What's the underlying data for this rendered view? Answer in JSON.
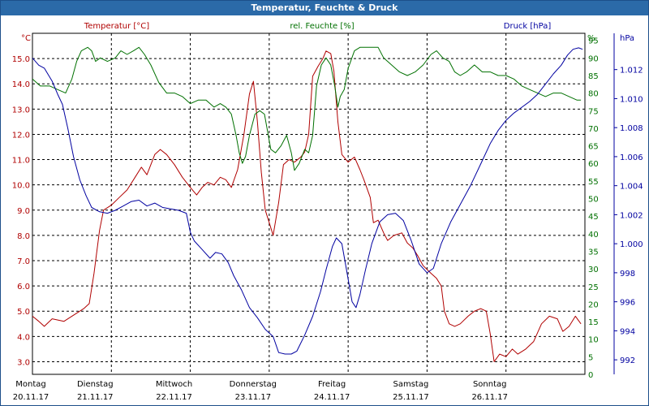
{
  "window": {
    "title": "Temperatur, Feuchte & Druck"
  },
  "chart_data": {
    "type": "line",
    "title": "Temperatur, Feuchte & Druck",
    "grid": true,
    "x_range": [
      0,
      7
    ],
    "days": [
      {
        "name": "Montag",
        "date": "20.11.17"
      },
      {
        "name": "Dienstag",
        "date": "21.11.17"
      },
      {
        "name": "Mittwoch",
        "date": "22.11.17"
      },
      {
        "name": "Donnerstag",
        "date": "23.11.17"
      },
      {
        "name": "Freitag",
        "date": "24.11.17"
      },
      {
        "name": "Samstag",
        "date": "25.11.17"
      },
      {
        "name": "Sonntag",
        "date": "26.11.17"
      }
    ],
    "axes": {
      "left": {
        "unit": "°C",
        "title": "Temperatur [°C]",
        "color": "#b00000",
        "range": [
          2.5,
          16.0
        ],
        "ticks": [
          "3.0",
          "4.0",
          "5.0",
          "6.0",
          "7.0",
          "8.0",
          "9.0",
          "10.0",
          "11.0",
          "12.0",
          "13.0",
          "14.0",
          "15.0"
        ]
      },
      "mid": {
        "unit": "%",
        "title": "rel. Feuchte [%]",
        "color": "#007000",
        "range": [
          0,
          97
        ],
        "ticks": [
          "0",
          "5",
          "10",
          "15",
          "20",
          "25",
          "30",
          "35",
          "40",
          "45",
          "50",
          "55",
          "60",
          "65",
          "70",
          "75",
          "80",
          "85",
          "90",
          "95"
        ]
      },
      "right": {
        "unit": "hPa",
        "title": "Druck [hPa]",
        "color": "#0000a0",
        "range": [
          991.0,
          1014.5
        ],
        "ticks": [
          "992",
          "994",
          "996",
          "998",
          "1.000",
          "1.002",
          "1.004",
          "1.006",
          "1.008",
          "1.010",
          "1.012"
        ]
      }
    },
    "series": [
      {
        "name": "Temperatur [°C]",
        "axis": "left",
        "color": "#b00000",
        "points": [
          [
            0,
            4.8
          ],
          [
            0.08,
            4.6
          ],
          [
            0.15,
            4.4
          ],
          [
            0.25,
            4.7
          ],
          [
            0.4,
            4.6
          ],
          [
            0.55,
            4.9
          ],
          [
            0.65,
            5.1
          ],
          [
            0.72,
            5.3
          ],
          [
            0.78,
            6.5
          ],
          [
            0.85,
            8.2
          ],
          [
            0.9,
            9.0
          ],
          [
            1.0,
            9.2
          ],
          [
            1.1,
            9.5
          ],
          [
            1.2,
            9.8
          ],
          [
            1.3,
            10.3
          ],
          [
            1.38,
            10.7
          ],
          [
            1.45,
            10.4
          ],
          [
            1.55,
            11.2
          ],
          [
            1.62,
            11.4
          ],
          [
            1.7,
            11.2
          ],
          [
            1.8,
            10.8
          ],
          [
            1.9,
            10.3
          ],
          [
            2.0,
            9.9
          ],
          [
            2.08,
            9.6
          ],
          [
            2.15,
            9.9
          ],
          [
            2.22,
            10.1
          ],
          [
            2.3,
            10.0
          ],
          [
            2.38,
            10.3
          ],
          [
            2.45,
            10.2
          ],
          [
            2.52,
            9.9
          ],
          [
            2.6,
            10.6
          ],
          [
            2.68,
            12.0
          ],
          [
            2.75,
            13.6
          ],
          [
            2.8,
            14.1
          ],
          [
            2.85,
            12.5
          ],
          [
            2.9,
            10.5
          ],
          [
            2.95,
            9.0
          ],
          [
            3.0,
            8.5
          ],
          [
            3.05,
            8.0
          ],
          [
            3.12,
            9.3
          ],
          [
            3.18,
            10.8
          ],
          [
            3.25,
            11.0
          ],
          [
            3.32,
            10.9
          ],
          [
            3.4,
            11.1
          ],
          [
            3.45,
            11.3
          ],
          [
            3.5,
            12.0
          ],
          [
            3.55,
            14.3
          ],
          [
            3.62,
            14.7
          ],
          [
            3.68,
            15.0
          ],
          [
            3.72,
            15.3
          ],
          [
            3.78,
            15.2
          ],
          [
            3.82,
            14.5
          ],
          [
            3.87,
            12.5
          ],
          [
            3.92,
            11.2
          ],
          [
            4.0,
            10.9
          ],
          [
            4.08,
            11.1
          ],
          [
            4.15,
            10.6
          ],
          [
            4.2,
            10.2
          ],
          [
            4.28,
            9.5
          ],
          [
            4.32,
            8.5
          ],
          [
            4.38,
            8.6
          ],
          [
            4.45,
            8.1
          ],
          [
            4.5,
            7.8
          ],
          [
            4.58,
            8.0
          ],
          [
            4.68,
            8.1
          ],
          [
            4.75,
            7.7
          ],
          [
            4.82,
            7.5
          ],
          [
            4.88,
            7.2
          ],
          [
            4.95,
            6.8
          ],
          [
            5.05,
            6.5
          ],
          [
            5.12,
            6.3
          ],
          [
            5.18,
            6.0
          ],
          [
            5.22,
            5.0
          ],
          [
            5.28,
            4.5
          ],
          [
            5.35,
            4.4
          ],
          [
            5.42,
            4.5
          ],
          [
            5.52,
            4.8
          ],
          [
            5.6,
            5.0
          ],
          [
            5.68,
            5.1
          ],
          [
            5.75,
            5.0
          ],
          [
            5.8,
            4.1
          ],
          [
            5.85,
            3.0
          ],
          [
            5.92,
            3.3
          ],
          [
            6.0,
            3.2
          ],
          [
            6.08,
            3.5
          ],
          [
            6.15,
            3.3
          ],
          [
            6.25,
            3.5
          ],
          [
            6.35,
            3.8
          ],
          [
            6.45,
            4.5
          ],
          [
            6.55,
            4.8
          ],
          [
            6.65,
            4.7
          ],
          [
            6.72,
            4.2
          ],
          [
            6.8,
            4.4
          ],
          [
            6.88,
            4.8
          ],
          [
            6.95,
            4.5
          ]
        ]
      },
      {
        "name": "rel. Feuchte [%]",
        "axis": "mid",
        "color": "#007000",
        "points": [
          [
            0,
            84
          ],
          [
            0.05,
            83
          ],
          [
            0.1,
            82
          ],
          [
            0.22,
            82
          ],
          [
            0.32,
            81
          ],
          [
            0.42,
            80
          ],
          [
            0.5,
            84
          ],
          [
            0.56,
            89
          ],
          [
            0.62,
            92
          ],
          [
            0.7,
            93
          ],
          [
            0.75,
            92
          ],
          [
            0.8,
            89
          ],
          [
            0.86,
            90
          ],
          [
            0.95,
            89
          ],
          [
            1.05,
            90
          ],
          [
            1.12,
            92
          ],
          [
            1.2,
            91
          ],
          [
            1.28,
            92
          ],
          [
            1.35,
            93
          ],
          [
            1.42,
            91
          ],
          [
            1.5,
            88
          ],
          [
            1.6,
            83
          ],
          [
            1.7,
            80
          ],
          [
            1.8,
            80
          ],
          [
            1.9,
            79
          ],
          [
            2.0,
            77
          ],
          [
            2.1,
            78
          ],
          [
            2.2,
            78
          ],
          [
            2.3,
            76
          ],
          [
            2.38,
            77
          ],
          [
            2.45,
            76
          ],
          [
            2.52,
            74
          ],
          [
            2.58,
            68
          ],
          [
            2.62,
            63
          ],
          [
            2.66,
            60
          ],
          [
            2.7,
            62
          ],
          [
            2.75,
            68
          ],
          [
            2.82,
            74
          ],
          [
            2.88,
            75
          ],
          [
            2.94,
            74
          ],
          [
            2.98,
            69
          ],
          [
            3.02,
            64
          ],
          [
            3.08,
            63
          ],
          [
            3.15,
            65
          ],
          [
            3.22,
            68
          ],
          [
            3.28,
            63
          ],
          [
            3.32,
            58
          ],
          [
            3.38,
            60
          ],
          [
            3.45,
            64
          ],
          [
            3.5,
            63
          ],
          [
            3.55,
            68
          ],
          [
            3.6,
            82
          ],
          [
            3.66,
            88
          ],
          [
            3.72,
            90
          ],
          [
            3.78,
            88
          ],
          [
            3.83,
            82
          ],
          [
            3.87,
            76
          ],
          [
            3.9,
            79
          ],
          [
            3.95,
            81
          ],
          [
            4.0,
            87
          ],
          [
            4.08,
            92
          ],
          [
            4.15,
            93
          ],
          [
            4.28,
            93
          ],
          [
            4.38,
            93
          ],
          [
            4.45,
            90
          ],
          [
            4.55,
            88
          ],
          [
            4.65,
            86
          ],
          [
            4.75,
            85
          ],
          [
            4.85,
            86
          ],
          [
            4.95,
            88
          ],
          [
            5.05,
            91
          ],
          [
            5.12,
            92
          ],
          [
            5.2,
            90
          ],
          [
            5.28,
            89
          ],
          [
            5.35,
            86
          ],
          [
            5.42,
            85
          ],
          [
            5.5,
            86
          ],
          [
            5.6,
            88
          ],
          [
            5.7,
            86
          ],
          [
            5.8,
            86
          ],
          [
            5.9,
            85
          ],
          [
            6.0,
            85
          ],
          [
            6.1,
            84
          ],
          [
            6.2,
            82
          ],
          [
            6.3,
            81
          ],
          [
            6.4,
            80
          ],
          [
            6.5,
            79
          ],
          [
            6.6,
            80
          ],
          [
            6.7,
            80
          ],
          [
            6.8,
            79
          ],
          [
            6.9,
            78
          ],
          [
            6.95,
            78
          ]
        ]
      },
      {
        "name": "Druck [hPa]",
        "axis": "right",
        "color": "#0000a0",
        "points": [
          [
            0,
            1012.8
          ],
          [
            0.08,
            1012.3
          ],
          [
            0.15,
            1012.1
          ],
          [
            0.25,
            1011.2
          ],
          [
            0.32,
            1010.3
          ],
          [
            0.38,
            1009.6
          ],
          [
            0.45,
            1007.9
          ],
          [
            0.52,
            1006.0
          ],
          [
            0.6,
            1004.4
          ],
          [
            0.68,
            1003.3
          ],
          [
            0.75,
            1002.5
          ],
          [
            0.85,
            1002.2
          ],
          [
            0.95,
            1002.1
          ],
          [
            1.05,
            1002.3
          ],
          [
            1.15,
            1002.6
          ],
          [
            1.25,
            1002.9
          ],
          [
            1.35,
            1003.0
          ],
          [
            1.45,
            1002.6
          ],
          [
            1.55,
            1002.8
          ],
          [
            1.65,
            1002.5
          ],
          [
            1.75,
            1002.4
          ],
          [
            1.85,
            1002.3
          ],
          [
            1.95,
            1002.1
          ],
          [
            2.0,
            1000.8
          ],
          [
            2.05,
            1000.2
          ],
          [
            2.15,
            999.6
          ],
          [
            2.25,
            999.0
          ],
          [
            2.32,
            999.4
          ],
          [
            2.4,
            999.3
          ],
          [
            2.48,
            998.7
          ],
          [
            2.55,
            997.8
          ],
          [
            2.65,
            996.8
          ],
          [
            2.75,
            995.6
          ],
          [
            2.85,
            994.9
          ],
          [
            2.95,
            994.1
          ],
          [
            3.05,
            993.6
          ],
          [
            3.12,
            992.5
          ],
          [
            3.2,
            992.4
          ],
          [
            3.28,
            992.4
          ],
          [
            3.35,
            992.6
          ],
          [
            3.45,
            993.7
          ],
          [
            3.55,
            995.0
          ],
          [
            3.65,
            996.7
          ],
          [
            3.72,
            998.2
          ],
          [
            3.8,
            999.8
          ],
          [
            3.85,
            1000.4
          ],
          [
            3.92,
            1000.0
          ],
          [
            3.97,
            998.5
          ],
          [
            4.05,
            996.0
          ],
          [
            4.1,
            995.6
          ],
          [
            4.15,
            996.5
          ],
          [
            4.22,
            998.2
          ],
          [
            4.3,
            1000.0
          ],
          [
            4.4,
            1001.5
          ],
          [
            4.5,
            1002.0
          ],
          [
            4.6,
            1002.1
          ],
          [
            4.7,
            1001.6
          ],
          [
            4.8,
            1000.2
          ],
          [
            4.9,
            998.6
          ],
          [
            5.0,
            998.0
          ],
          [
            5.08,
            998.3
          ],
          [
            5.18,
            1000.0
          ],
          [
            5.3,
            1001.5
          ],
          [
            5.42,
            1002.7
          ],
          [
            5.55,
            1004.0
          ],
          [
            5.68,
            1005.5
          ],
          [
            5.8,
            1006.9
          ],
          [
            5.9,
            1007.8
          ],
          [
            6.0,
            1008.5
          ],
          [
            6.1,
            1009.0
          ],
          [
            6.2,
            1009.4
          ],
          [
            6.3,
            1009.8
          ],
          [
            6.4,
            1010.3
          ],
          [
            6.5,
            1011.0
          ],
          [
            6.6,
            1011.7
          ],
          [
            6.7,
            1012.3
          ],
          [
            6.78,
            1013.0
          ],
          [
            6.85,
            1013.4
          ],
          [
            6.92,
            1013.5
          ],
          [
            6.97,
            1013.4
          ]
        ]
      }
    ]
  }
}
